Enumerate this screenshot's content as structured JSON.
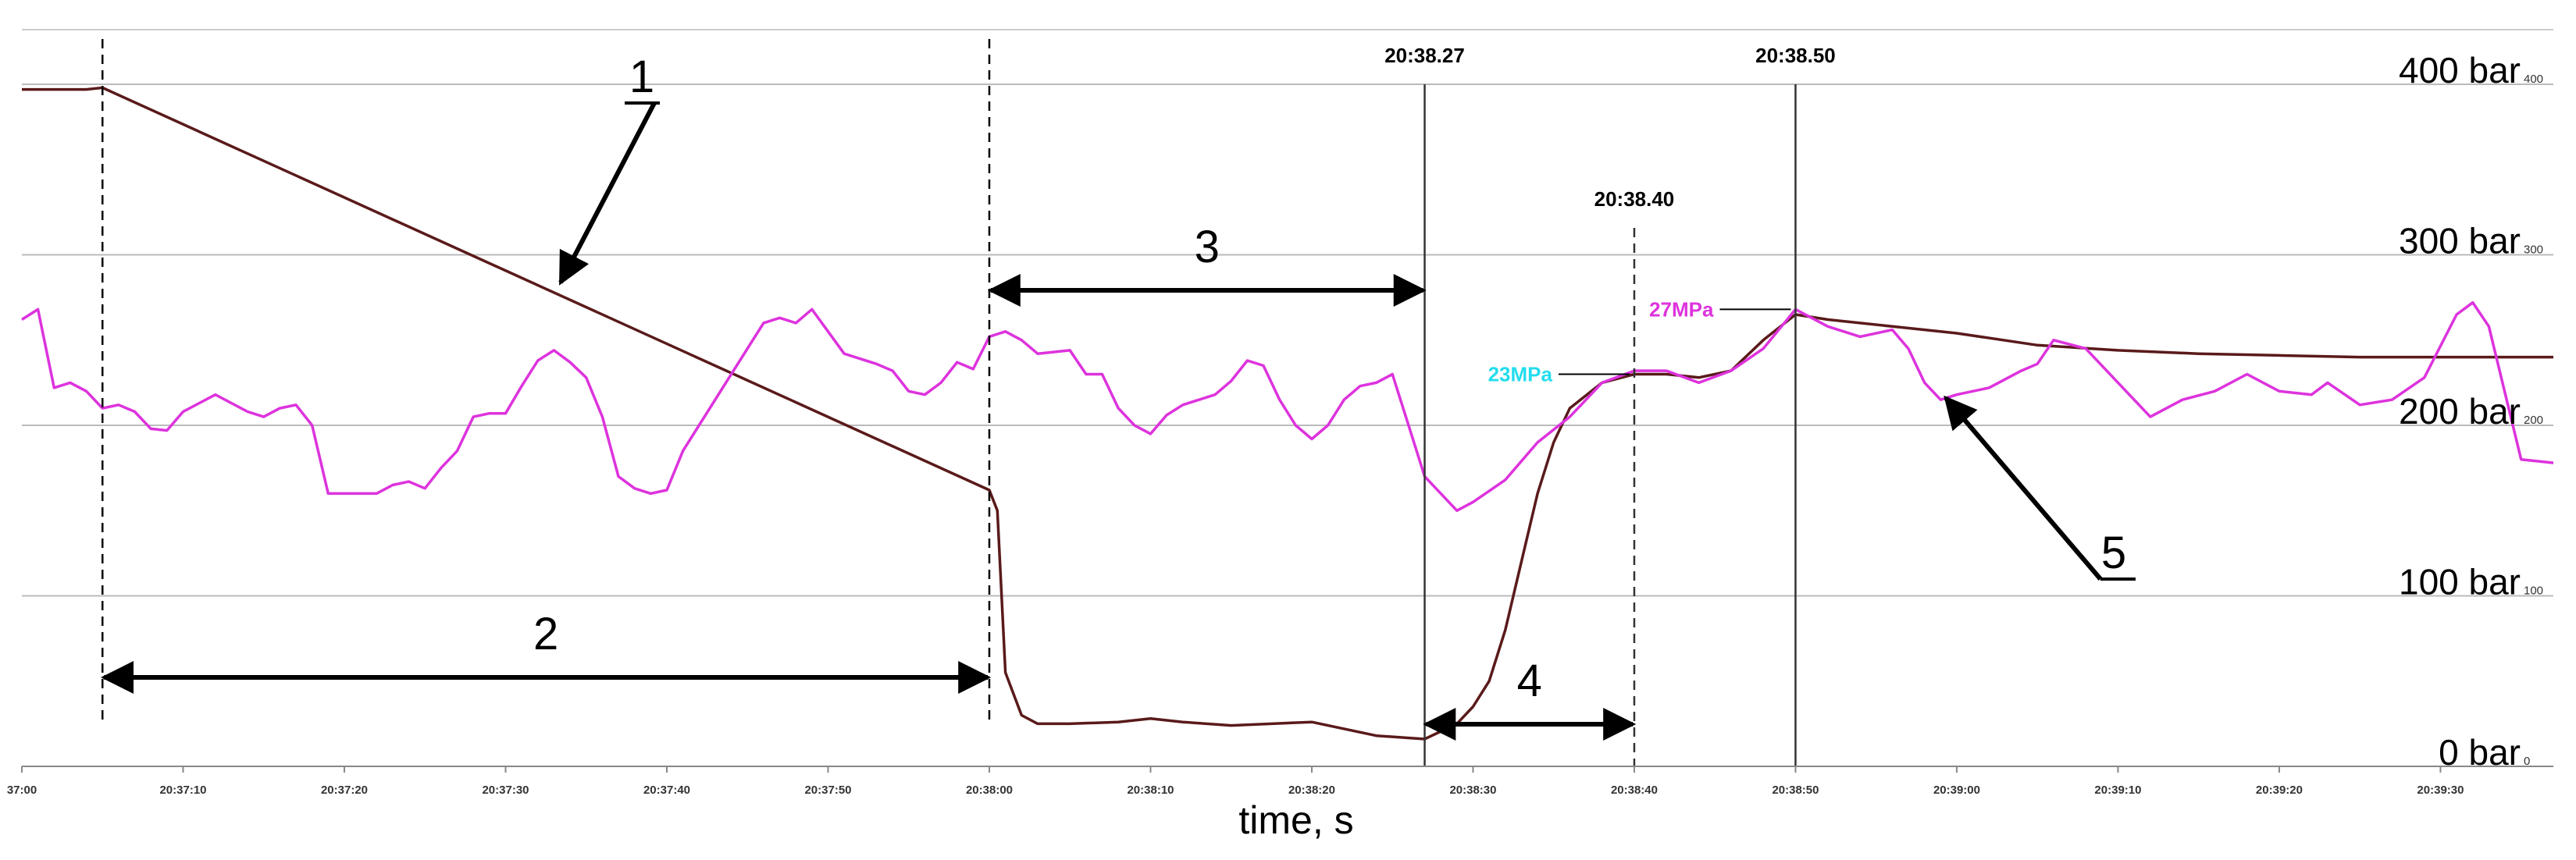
{
  "chart_data": {
    "type": "line",
    "xlabel": "time, s",
    "x_range": [
      "20:37:00",
      "20:39:37"
    ],
    "ylim": [
      0,
      400
    ],
    "y_ticks": [
      {
        "value": 0,
        "label": "0 bar",
        "small": "0"
      },
      {
        "value": 100,
        "label": "100 bar",
        "small": "100"
      },
      {
        "value": 200,
        "label": "200 bar",
        "small": "200"
      },
      {
        "value": 300,
        "label": "300 bar",
        "small": "300"
      },
      {
        "value": 400,
        "label": "400 bar",
        "small": "400"
      }
    ],
    "grid": true,
    "x_ticks": [
      {
        "value": "20:37:00",
        "label": "37:00"
      },
      {
        "value": "20:37:10",
        "label": "20:37:10"
      },
      {
        "value": "20:37:20",
        "label": "20:37:20"
      },
      {
        "value": "20:37:30",
        "label": "20:37:30"
      },
      {
        "value": "20:37:40",
        "label": "20:37:40"
      },
      {
        "value": "20:37:50",
        "label": "20:37:50"
      },
      {
        "value": "20:38:00",
        "label": "20:38:00"
      },
      {
        "value": "20:38:10",
        "label": "20:38:10"
      },
      {
        "value": "20:38:20",
        "label": "20:38:20"
      },
      {
        "value": "20:38:30",
        "label": "20:38:30"
      },
      {
        "value": "20:38:40",
        "label": "20:38:40"
      },
      {
        "value": "20:38:50",
        "label": "20:38:50"
      },
      {
        "value": "20:39:00",
        "label": "20:39:00"
      },
      {
        "value": "20:39:10",
        "label": "20:39:10"
      },
      {
        "value": "20:39:20",
        "label": "20:39:20"
      },
      {
        "value": "20:39:30",
        "label": "20:39:30"
      }
    ],
    "series": [
      {
        "color": "#5a1a1a",
        "points": [
          [
            "20:37:00",
            397
          ],
          [
            "20:37:04",
            397
          ],
          [
            "20:37:05",
            398
          ],
          [
            "20:38:00",
            162
          ],
          [
            "20:38:00.5",
            150
          ],
          [
            "20:38:01",
            55
          ],
          [
            "20:38:02",
            30
          ],
          [
            "20:38:03",
            25
          ],
          [
            "20:38:05",
            25
          ],
          [
            "20:38:08",
            26
          ],
          [
            "20:38:10",
            28
          ],
          [
            "20:38:12",
            26
          ],
          [
            "20:38:15",
            24
          ],
          [
            "20:38:20",
            26
          ],
          [
            "20:38:24",
            18
          ],
          [
            "20:38:27",
            16
          ],
          [
            "20:38:29",
            25
          ],
          [
            "20:38:30",
            35
          ],
          [
            "20:38:31",
            50
          ],
          [
            "20:38:32",
            80
          ],
          [
            "20:38:33",
            120
          ],
          [
            "20:38:34",
            160
          ],
          [
            "20:38:35",
            190
          ],
          [
            "20:38:36",
            210
          ],
          [
            "20:38:38",
            225
          ],
          [
            "20:38:40",
            230
          ],
          [
            "20:38:42",
            230
          ],
          [
            "20:38:44",
            228
          ],
          [
            "20:38:46",
            232
          ],
          [
            "20:38:48",
            250
          ],
          [
            "20:38:50",
            265
          ],
          [
            "20:38:52",
            262
          ],
          [
            "20:38:56",
            258
          ],
          [
            "20:39:00",
            254
          ],
          [
            "20:39:05",
            247
          ],
          [
            "20:39:10",
            244
          ],
          [
            "20:39:15",
            242
          ],
          [
            "20:39:20",
            241
          ],
          [
            "20:39:25",
            240
          ],
          [
            "20:39:30",
            240
          ],
          [
            "20:39:37",
            240
          ]
        ]
      },
      {
        "color": "#dd33dd",
        "points": [
          [
            "20:37:00",
            262
          ],
          [
            "20:37:01",
            268
          ],
          [
            "20:37:02",
            222
          ],
          [
            "20:37:03",
            225
          ],
          [
            "20:37:04",
            220
          ],
          [
            "20:37:05",
            210
          ],
          [
            "20:37:06",
            212
          ],
          [
            "20:37:07",
            208
          ],
          [
            "20:37:08",
            198
          ],
          [
            "20:37:09",
            197
          ],
          [
            "20:37:10",
            208
          ],
          [
            "20:37:12",
            218
          ],
          [
            "20:37:14",
            208
          ],
          [
            "20:37:15",
            205
          ],
          [
            "20:37:16",
            210
          ],
          [
            "20:37:17",
            212
          ],
          [
            "20:37:18",
            200
          ],
          [
            "20:37:19",
            160
          ],
          [
            "20:37:22",
            160
          ],
          [
            "20:37:23",
            165
          ],
          [
            "20:37:24",
            167
          ],
          [
            "20:37:25",
            163
          ],
          [
            "20:37:26",
            175
          ],
          [
            "20:37:27",
            185
          ],
          [
            "20:37:28",
            205
          ],
          [
            "20:37:29",
            207
          ],
          [
            "20:37:30",
            207
          ],
          [
            "20:37:31",
            223
          ],
          [
            "20:37:32",
            238
          ],
          [
            "20:37:33",
            244
          ],
          [
            "20:37:34",
            237
          ],
          [
            "20:37:35",
            228
          ],
          [
            "20:37:36",
            205
          ],
          [
            "20:37:37",
            170
          ],
          [
            "20:37:38",
            163
          ],
          [
            "20:37:39",
            160
          ],
          [
            "20:37:40",
            162
          ],
          [
            "20:37:41",
            185
          ],
          [
            "20:37:43",
            215
          ],
          [
            "20:37:45",
            245
          ],
          [
            "20:37:46",
            260
          ],
          [
            "20:37:47",
            263
          ],
          [
            "20:37:48",
            260
          ],
          [
            "20:37:49",
            268
          ],
          [
            "20:37:50",
            255
          ],
          [
            "20:37:51",
            242
          ],
          [
            "20:37:53",
            236
          ],
          [
            "20:37:54",
            232
          ],
          [
            "20:37:55",
            220
          ],
          [
            "20:37:56",
            218
          ],
          [
            "20:37:57",
            225
          ],
          [
            "20:37:58",
            237
          ],
          [
            "20:37:59",
            233
          ],
          [
            "20:38:00",
            252
          ],
          [
            "20:38:01",
            255
          ],
          [
            "20:38:02",
            250
          ],
          [
            "20:38:03",
            242
          ],
          [
            "20:38:05",
            244
          ],
          [
            "20:38:06",
            230
          ],
          [
            "20:38:07",
            230
          ],
          [
            "20:38:08",
            210
          ],
          [
            "20:38:09",
            200
          ],
          [
            "20:38:10",
            195
          ],
          [
            "20:38:11",
            206
          ],
          [
            "20:38:12",
            212
          ],
          [
            "20:38:14",
            218
          ],
          [
            "20:38:15",
            226
          ],
          [
            "20:38:16",
            238
          ],
          [
            "20:38:17",
            235
          ],
          [
            "20:38:18",
            215
          ],
          [
            "20:38:19",
            200
          ],
          [
            "20:38:20",
            192
          ],
          [
            "20:38:21",
            200
          ],
          [
            "20:38:22",
            215
          ],
          [
            "20:38:23",
            223
          ],
          [
            "20:38:24",
            225
          ],
          [
            "20:38:25",
            230
          ],
          [
            "20:38:26",
            200
          ],
          [
            "20:38:27",
            170
          ],
          [
            "20:38:28",
            160
          ],
          [
            "20:38:29",
            150
          ],
          [
            "20:38:30",
            155
          ],
          [
            "20:38:32",
            168
          ],
          [
            "20:38:34",
            190
          ],
          [
            "20:38:36",
            205
          ],
          [
            "20:38:38",
            225
          ],
          [
            "20:38:40",
            232
          ],
          [
            "20:38:42",
            232
          ],
          [
            "20:38:44",
            225
          ],
          [
            "20:38:46",
            232
          ],
          [
            "20:38:48",
            245
          ],
          [
            "20:38:50",
            268
          ],
          [
            "20:38:52",
            258
          ],
          [
            "20:38:54",
            252
          ],
          [
            "20:38:56",
            256
          ],
          [
            "20:38:57",
            245
          ],
          [
            "20:38:58",
            225
          ],
          [
            "20:38:59",
            215
          ],
          [
            "20:39:00",
            218
          ],
          [
            "20:39:02",
            222
          ],
          [
            "20:39:04",
            232
          ],
          [
            "20:39:05",
            236
          ],
          [
            "20:39:06",
            250
          ],
          [
            "20:39:08",
            245
          ],
          [
            "20:39:10",
            225
          ],
          [
            "20:39:12",
            205
          ],
          [
            "20:39:14",
            215
          ],
          [
            "20:39:16",
            220
          ],
          [
            "20:39:18",
            230
          ],
          [
            "20:39:20",
            220
          ],
          [
            "20:39:22",
            218
          ],
          [
            "20:39:23",
            225
          ],
          [
            "20:39:25",
            212
          ],
          [
            "20:39:27",
            215
          ],
          [
            "20:39:29",
            228
          ],
          [
            "20:39:31",
            265
          ],
          [
            "20:39:32",
            272
          ],
          [
            "20:39:33",
            258
          ],
          [
            "20:39:35",
            180
          ],
          [
            "20:39:37",
            178
          ]
        ]
      }
    ],
    "markers": [
      {
        "label": "20:38.27",
        "style": "solid",
        "x": "20:38:27"
      },
      {
        "label": "20:38.50",
        "style": "solid",
        "x": "20:38:50"
      },
      {
        "label": "20:38.40",
        "style": "dashed",
        "x": "20:38:40"
      }
    ],
    "dashed_verticals": [
      "20:37:05",
      "20:38:00"
    ],
    "callouts": [
      {
        "text": "23MPa",
        "color": "#22ddee",
        "x": "20:38:40",
        "y": 230
      },
      {
        "text": "27MPa",
        "color": "#dd33dd",
        "x": "20:38:50",
        "y": 268
      }
    ],
    "annotations": [
      {
        "text": "1",
        "type": "leader-arrow"
      },
      {
        "text": "2",
        "type": "double-arrow",
        "from": "20:37:05",
        "to": "20:38:00"
      },
      {
        "text": "3",
        "type": "double-arrow",
        "from": "20:38:00",
        "to": "20:38:27"
      },
      {
        "text": "4",
        "type": "double-arrow",
        "from": "20:38:27",
        "to": "20:38:40"
      },
      {
        "text": "5",
        "type": "leader-arrow"
      }
    ]
  }
}
